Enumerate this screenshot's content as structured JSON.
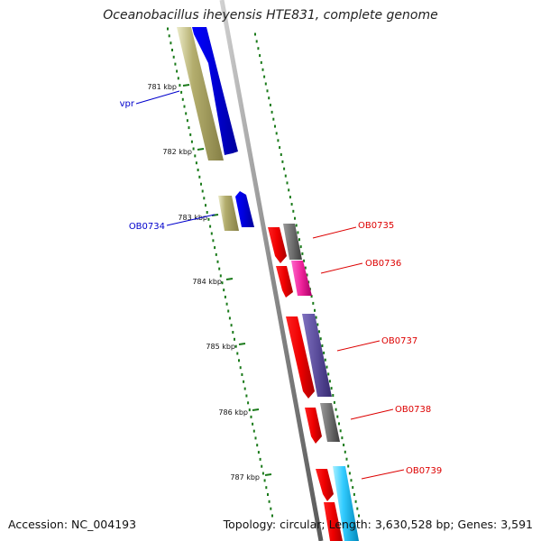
{
  "title": "Oceanobacillus iheyensis HTE831, complete genome",
  "footer": {
    "accession": "Accession: NC_004193",
    "summary": "Topology: circular; Length: 3,630,528 bp; Genes: 3,591"
  },
  "colors": {
    "forward_label": "#0000cc",
    "reverse_label": "#dd0000",
    "scale_dots": "#1a7a1a",
    "backbone": "#888888"
  },
  "ticks": [
    "781 kbp",
    "782 kbp",
    "783 kbp",
    "784 kbp",
    "785 kbp",
    "786 kbp",
    "787 kbp"
  ],
  "gene_labels": {
    "vpr": "vpr",
    "ob0734": "OB0734",
    "ob0735": "OB0735",
    "ob0736": "OB0736",
    "ob0737": "OB0737",
    "ob0738": "OB0738",
    "ob0739": "OB0739"
  }
}
